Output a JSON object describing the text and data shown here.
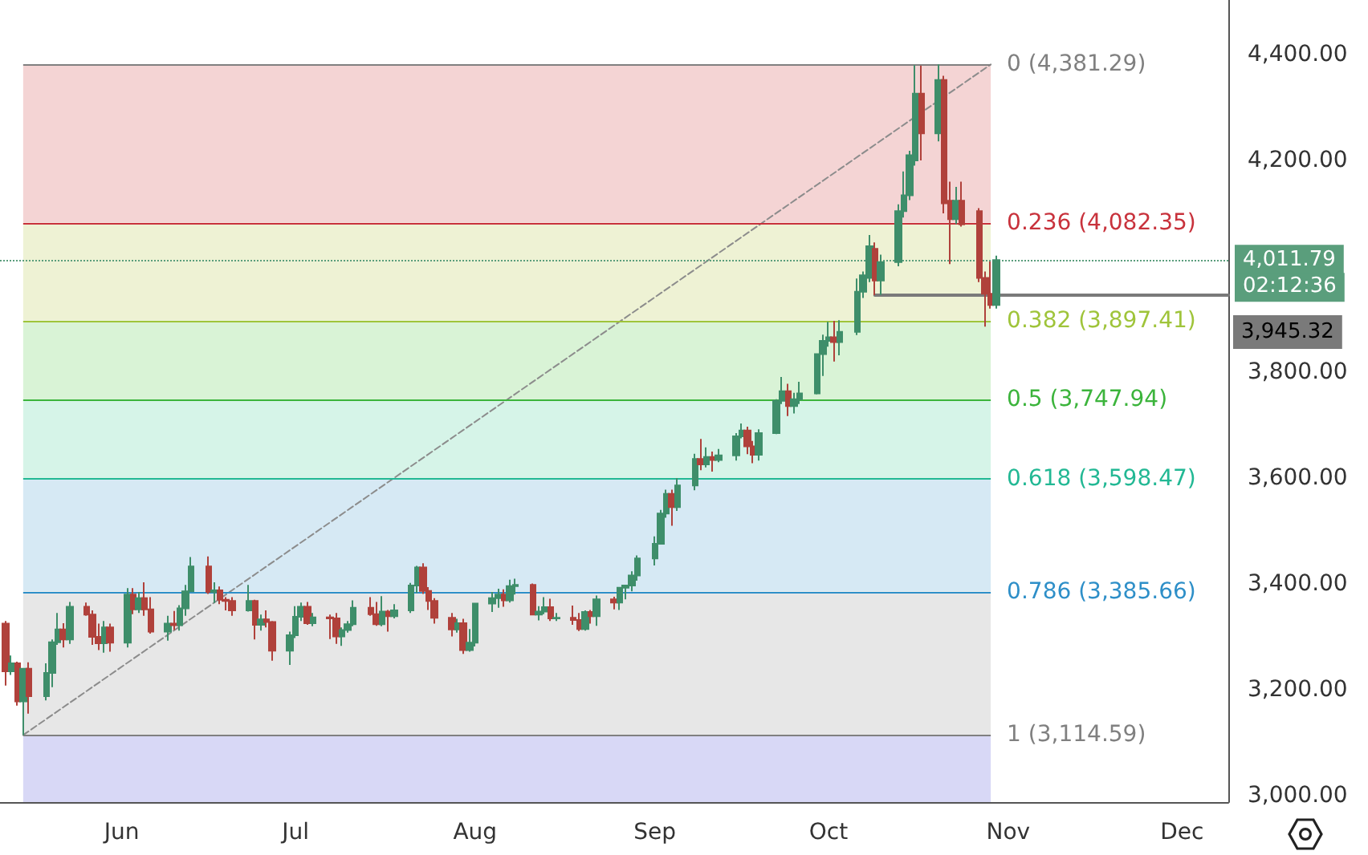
{
  "chart_data": {
    "type": "candlestick",
    "xlim": [
      "--05-11",
      "--12-09"
    ],
    "xticks": [
      {
        "value": "--06-01",
        "label": "Jun"
      },
      {
        "value": "--07-01",
        "label": "Jul"
      },
      {
        "value": "--08-01",
        "label": "Aug"
      },
      {
        "value": "--09-01",
        "label": "Sep"
      },
      {
        "value": "--10-01",
        "label": "Oct"
      },
      {
        "value": "--11-01",
        "label": "Nov"
      },
      {
        "value": "--12-01",
        "label": "Dec"
      }
    ],
    "ylim": [
      2988,
      4503
    ],
    "yticks": [
      {
        "value": 3000,
        "label": "3,000.00"
      },
      {
        "value": 3200,
        "label": "3,200.00"
      },
      {
        "value": 3400,
        "label": "3,400.00"
      },
      {
        "value": 3600,
        "label": "3,600.00"
      },
      {
        "value": 3800,
        "label": "3,800.00"
      },
      {
        "value": 4200,
        "label": "4,200.00"
      },
      {
        "value": 4400,
        "label": "4,400.00"
      }
    ],
    "series": [
      {
        "x": [
          "--05-12",
          "--05-13",
          "--05-14",
          "--05-15",
          "--05-16",
          "--05-19",
          "--05-20",
          "--05-21",
          "--05-22",
          "--05-23",
          "--05-26",
          "--05-27",
          "--05-28",
          "--05-29",
          "--05-30",
          "--06-02",
          "--06-03",
          "--06-04",
          "--06-05",
          "--06-06",
          "--06-09",
          "--06-10",
          "--06-11",
          "--06-12",
          "--06-13",
          "--06-16",
          "--06-17",
          "--06-18",
          "--06-19",
          "--06-20",
          "--06-23",
          "--06-24",
          "--06-25",
          "--06-26",
          "--06-27",
          "--06-30",
          "--07-01",
          "--07-02",
          "--07-03",
          "--07-04",
          "--07-07",
          "--07-08",
          "--07-09",
          "--07-10",
          "--07-11",
          "--07-14",
          "--07-15",
          "--07-16",
          "--07-17",
          "--07-18",
          "--07-21",
          "--07-22",
          "--07-23",
          "--07-24",
          "--07-25",
          "--07-28",
          "--07-29",
          "--07-30",
          "--07-31",
          "--08-01",
          "--08-04",
          "--08-05",
          "--08-06",
          "--08-07",
          "--08-08",
          "--08-11",
          "--08-12",
          "--08-13",
          "--08-14",
          "--08-15",
          "--08-18",
          "--08-19",
          "--08-20",
          "--08-21",
          "--08-22",
          "--08-25",
          "--08-26",
          "--08-27",
          "--08-28",
          "--08-29",
          "--09-01",
          "--09-02",
          "--09-03",
          "--09-04",
          "--09-05",
          "--09-08",
          "--09-09",
          "--09-10",
          "--09-11",
          "--09-12",
          "--09-15",
          "--09-16",
          "--09-17",
          "--09-18",
          "--09-19",
          "--09-22",
          "--09-23",
          "--09-24",
          "--09-25",
          "--09-26",
          "--09-29",
          "--09-30",
          "--10-01",
          "--10-02",
          "--10-03",
          "--10-06",
          "--10-07",
          "--10-08",
          "--10-09",
          "--10-10",
          "--10-13",
          "--10-14",
          "--10-15",
          "--10-16",
          "--10-17",
          "--10-20",
          "--10-21",
          "--10-22",
          "--10-23",
          "--10-24",
          "--10-27",
          "--10-28",
          "--10-29",
          "--10-30"
        ],
        "ohlc": [
          [
            3325,
            3330,
            3208,
            3235
          ],
          [
            3235,
            3265,
            3228,
            3250
          ],
          [
            3250,
            3253,
            3170,
            3178
          ],
          [
            3178,
            3240,
            3114.59,
            3240
          ],
          [
            3240,
            3252,
            3155,
            3188
          ],
          [
            3188,
            3250,
            3180,
            3232
          ],
          [
            3232,
            3295,
            3205,
            3290
          ],
          [
            3290,
            3345,
            3285,
            3314
          ],
          [
            3314,
            3326,
            3280,
            3295
          ],
          [
            3295,
            3366,
            3287,
            3357
          ],
          [
            3357,
            3365,
            3340,
            3342
          ],
          [
            3342,
            3350,
            3285,
            3300
          ],
          [
            3300,
            3325,
            3275,
            3288
          ],
          [
            3288,
            3330,
            3270,
            3318
          ],
          [
            3318,
            3325,
            3272,
            3289
          ],
          [
            3289,
            3392,
            3280,
            3380
          ],
          [
            3380,
            3392,
            3343,
            3352
          ],
          [
            3352,
            3385,
            3345,
            3373
          ],
          [
            3373,
            3403,
            3340,
            3352
          ],
          [
            3352,
            3375,
            3306,
            3310
          ],
          [
            3310,
            3340,
            3293,
            3325
          ],
          [
            3325,
            3349,
            3313,
            3322
          ],
          [
            3322,
            3360,
            3312,
            3354
          ],
          [
            3354,
            3398,
            3340,
            3386
          ],
          [
            3386,
            3451,
            3385,
            3433
          ],
          [
            3433,
            3452,
            3381,
            3385
          ],
          [
            3385,
            3403,
            3364,
            3388
          ],
          [
            3388,
            3395,
            3362,
            3370
          ],
          [
            3370,
            3375,
            3350,
            3368
          ],
          [
            3368,
            3375,
            3340,
            3350
          ],
          [
            3350,
            3398,
            3348,
            3368
          ],
          [
            3368,
            3370,
            3295,
            3323
          ],
          [
            3323,
            3342,
            3312,
            3333
          ],
          [
            3333,
            3350,
            3318,
            3328
          ],
          [
            3328,
            3330,
            3255,
            3274
          ],
          [
            3274,
            3310,
            3247,
            3303
          ],
          [
            3303,
            3358,
            3298,
            3338
          ],
          [
            3338,
            3365,
            3330,
            3357
          ],
          [
            3357,
            3366,
            3323,
            3326
          ],
          [
            3326,
            3345,
            3320,
            3337
          ],
          [
            3337,
            3342,
            3296,
            3335
          ],
          [
            3335,
            3345,
            3287,
            3301
          ],
          [
            3301,
            3318,
            3283,
            3313
          ],
          [
            3313,
            3330,
            3308,
            3324
          ],
          [
            3324,
            3369,
            3320,
            3355
          ],
          [
            3355,
            3375,
            3340,
            3343
          ],
          [
            3343,
            3366,
            3321,
            3324
          ],
          [
            3324,
            3377,
            3320,
            3348
          ],
          [
            3348,
            3351,
            3310,
            3339
          ],
          [
            3339,
            3362,
            3335,
            3350
          ],
          [
            3350,
            3402,
            3345,
            3397
          ],
          [
            3397,
            3434,
            3383,
            3431
          ],
          [
            3431,
            3439,
            3381,
            3387
          ],
          [
            3387,
            3394,
            3351,
            3368
          ],
          [
            3368,
            3373,
            3325,
            3336
          ],
          [
            3336,
            3345,
            3301,
            3314
          ],
          [
            3314,
            3334,
            3308,
            3326
          ],
          [
            3326,
            3334,
            3268,
            3275
          ],
          [
            3275,
            3315,
            3272,
            3289
          ],
          [
            3289,
            3363,
            3282,
            3363
          ],
          [
            3363,
            3385,
            3347,
            3373
          ],
          [
            3373,
            3391,
            3355,
            3380
          ],
          [
            3380,
            3390,
            3357,
            3369
          ],
          [
            3369,
            3408,
            3365,
            3396
          ],
          [
            3396,
            3410,
            3380,
            3398
          ],
          [
            3398,
            3401,
            3341,
            3342
          ],
          [
            3342,
            3358,
            3331,
            3348
          ],
          [
            3348,
            3375,
            3343,
            3356
          ],
          [
            3356,
            3372,
            3330,
            3335
          ],
          [
            3335,
            3345,
            3330,
            3336
          ],
          [
            3336,
            3359,
            3323,
            3332
          ],
          [
            3332,
            3345,
            3311,
            3315
          ],
          [
            3315,
            3350,
            3312,
            3347
          ],
          [
            3347,
            3351,
            3325,
            3339
          ],
          [
            3339,
            3378,
            3321,
            3371
          ],
          [
            3371,
            3376,
            3352,
            3365
          ],
          [
            3365,
            3394,
            3351,
            3393
          ],
          [
            3393,
            3398,
            3371,
            3397
          ],
          [
            3397,
            3424,
            3386,
            3416
          ],
          [
            3416,
            3454,
            3406,
            3448
          ],
          [
            3448,
            3490,
            3435,
            3476
          ],
          [
            3476,
            3540,
            3475,
            3533
          ],
          [
            3533,
            3578,
            3525,
            3570
          ],
          [
            3570,
            3578,
            3510,
            3545
          ],
          [
            3545,
            3600,
            3538,
            3586
          ],
          [
            3586,
            3646,
            3577,
            3636
          ],
          [
            3636,
            3674,
            3615,
            3626
          ],
          [
            3626,
            3658,
            3620,
            3640
          ],
          [
            3640,
            3650,
            3612,
            3634
          ],
          [
            3634,
            3655,
            3630,
            3643
          ],
          [
            3643,
            3685,
            3633,
            3679
          ],
          [
            3679,
            3703,
            3675,
            3690
          ],
          [
            3690,
            3697,
            3645,
            3660
          ],
          [
            3660,
            3670,
            3628,
            3644
          ],
          [
            3644,
            3692,
            3633,
            3685
          ],
          [
            3685,
            3749,
            3683,
            3746
          ],
          [
            3746,
            3791,
            3740,
            3764
          ],
          [
            3764,
            3778,
            3717,
            3736
          ],
          [
            3736,
            3761,
            3722,
            3749
          ],
          [
            3749,
            3782,
            3740,
            3760
          ],
          [
            3760,
            3835,
            3758,
            3834
          ],
          [
            3834,
            3871,
            3793,
            3859
          ],
          [
            3859,
            3895,
            3848,
            3866
          ],
          [
            3866,
            3897,
            3820,
            3857
          ],
          [
            3857,
            3898,
            3832,
            3876
          ],
          [
            3876,
            3977,
            3870,
            3952
          ],
          [
            3952,
            3990,
            3940,
            3983
          ],
          [
            3978,
            4059,
            3970,
            4038
          ],
          [
            4033,
            4045,
            3945.32,
            3973
          ],
          [
            3973,
            4022,
            3946,
            4008
          ],
          [
            4008,
            4117,
            4000,
            4104
          ],
          [
            4104,
            4179,
            4092,
            4134
          ],
          [
            4134,
            4218,
            4125,
            4210
          ],
          [
            4200,
            4380,
            4190,
            4326
          ],
          [
            4326,
            4379,
            4200,
            4251
          ],
          [
            4251,
            4381.29,
            4236,
            4352
          ],
          [
            4352,
            4360,
            4100,
            4119
          ],
          [
            4124,
            4160,
            4004,
            4089
          ],
          [
            4089,
            4150,
            4080,
            4124
          ],
          [
            4124,
            4160,
            4075,
            4079
          ],
          [
            4104,
            4110,
            3970,
            3978
          ],
          [
            3978,
            3990,
            3886,
            3948
          ],
          [
            3948,
            4009,
            3920,
            3927
          ],
          [
            3927,
            4020,
            3920,
            4011.79
          ]
        ],
        "colors": [
          "#b0413b",
          "#3e8e6a",
          "#b0413b",
          "#3e8e6a",
          "#b0413b",
          "#3e8e6a",
          "#3e8e6a",
          "#3e8e6a",
          "#b0413b",
          "#3e8e6a",
          "#b0413b",
          "#b0413b",
          "#b0413b",
          "#3e8e6a",
          "#b0413b",
          "#3e8e6a",
          "#b0413b",
          "#3e8e6a",
          "#b0413b",
          "#b0413b",
          "#3e8e6a",
          "#b0413b",
          "#3e8e6a",
          "#3e8e6a",
          "#3e8e6a",
          "#b0413b",
          "#3e8e6a",
          "#b0413b",
          "#b0413b",
          "#b0413b",
          "#3e8e6a",
          "#b0413b",
          "#3e8e6a",
          "#b0413b",
          "#b0413b",
          "#3e8e6a",
          "#3e8e6a",
          "#3e8e6a",
          "#b0413b",
          "#3e8e6a",
          "#b0413b",
          "#b0413b",
          "#3e8e6a",
          "#3e8e6a",
          "#3e8e6a",
          "#b0413b",
          "#b0413b",
          "#3e8e6a",
          "#b0413b",
          "#3e8e6a",
          "#3e8e6a",
          "#3e8e6a",
          "#b0413b",
          "#b0413b",
          "#b0413b",
          "#b0413b",
          "#3e8e6a",
          "#b0413b",
          "#3e8e6a",
          "#3e8e6a",
          "#3e8e6a",
          "#3e8e6a",
          "#b0413b",
          "#3e8e6a",
          "#3e8e6a",
          "#b0413b",
          "#3e8e6a",
          "#3e8e6a",
          "#b0413b",
          "#3e8e6a",
          "#b0413b",
          "#b0413b",
          "#3e8e6a",
          "#b0413b",
          "#3e8e6a",
          "#b0413b",
          "#3e8e6a",
          "#3e8e6a",
          "#3e8e6a",
          "#3e8e6a",
          "#3e8e6a",
          "#3e8e6a",
          "#3e8e6a",
          "#b0413b",
          "#3e8e6a",
          "#3e8e6a",
          "#b0413b",
          "#3e8e6a",
          "#b0413b",
          "#3e8e6a",
          "#3e8e6a",
          "#3e8e6a",
          "#b0413b",
          "#b0413b",
          "#3e8e6a",
          "#3e8e6a",
          "#3e8e6a",
          "#b0413b",
          "#3e8e6a",
          "#3e8e6a",
          "#3e8e6a",
          "#3e8e6a",
          "#3e8e6a",
          "#b0413b",
          "#3e8e6a",
          "#3e8e6a",
          "#3e8e6a",
          "#3e8e6a",
          "#b0413b",
          "#3e8e6a",
          "#3e8e6a",
          "#3e8e6a",
          "#3e8e6a",
          "#3e8e6a",
          "#b0413b",
          "#3e8e6a",
          "#b0413b",
          "#b0413b",
          "#3e8e6a",
          "#b0413b",
          "#b0413b",
          "#b0413b",
          "#b0413b",
          "#3e8e6a"
        ]
      },
      {
        "type": "line",
        "x": [
          "--05-15",
          "--10-29"
        ],
        "values": [
          3114.59,
          4381.29
        ],
        "color": "#8c8c8c",
        "line_style": "dashed",
        "marker": "none"
      },
      {
        "type": "line",
        "x": [
          "--10-09",
          "--12-09"
        ],
        "values": [
          3945.32,
          3945.32
        ],
        "color": "#7a7a7a",
        "line_style": "solid",
        "marker": "none",
        "value_labels": [
          null,
          "3,945.32"
        ]
      }
    ],
    "ref_lines": [
      {
        "axis": "y",
        "value": 4381.29,
        "label": "0 (4,381.29)",
        "color": "#808080"
      },
      {
        "axis": "y",
        "value": 4082.35,
        "label": "0.236 (4,082.35)",
        "color": "#c8323c"
      },
      {
        "axis": "y",
        "value": 3897.41,
        "label": "0.382 (3,897.41)",
        "color": "#9fc43a"
      },
      {
        "axis": "y",
        "value": 3747.94,
        "label": "0.5 (3,747.94)",
        "color": "#3cb43c"
      },
      {
        "axis": "y",
        "value": 3598.47,
        "label": "0.618 (3,598.47)",
        "color": "#22b894"
      },
      {
        "axis": "y",
        "value": 3385.66,
        "label": "0.786 (3,385.66)",
        "color": "#2e8fc8"
      },
      {
        "axis": "y",
        "value": 3114.59,
        "label": "1 (3,114.59)",
        "color": "#808080"
      },
      {
        "axis": "y",
        "value": 4011.79,
        "label": "4,011.79",
        "color": "#5a9e7c",
        "line_style": "dotted"
      }
    ],
    "bands": [
      {
        "axis": "y",
        "from": 4082.35,
        "to": 4381.29,
        "color": "#f4d4d4"
      },
      {
        "axis": "y",
        "from": 3897.41,
        "to": 4082.35,
        "color": "#eef2d4"
      },
      {
        "axis": "y",
        "from": 3747.94,
        "to": 3897.41,
        "color": "#d9f3d6"
      },
      {
        "axis": "y",
        "from": 3598.47,
        "to": 3747.94,
        "color": "#d6f4e8"
      },
      {
        "axis": "y",
        "from": 3385.66,
        "to": 3598.47,
        "color": "#d6e9f4"
      },
      {
        "axis": "y",
        "from": 3114.59,
        "to": 3385.66,
        "color": "#e7e7e7"
      },
      {
        "axis": "y",
        "from": 2988,
        "to": 3114.59,
        "color": "#d8d8f6"
      }
    ],
    "annotations": [
      "02:12:36"
    ]
  }
}
